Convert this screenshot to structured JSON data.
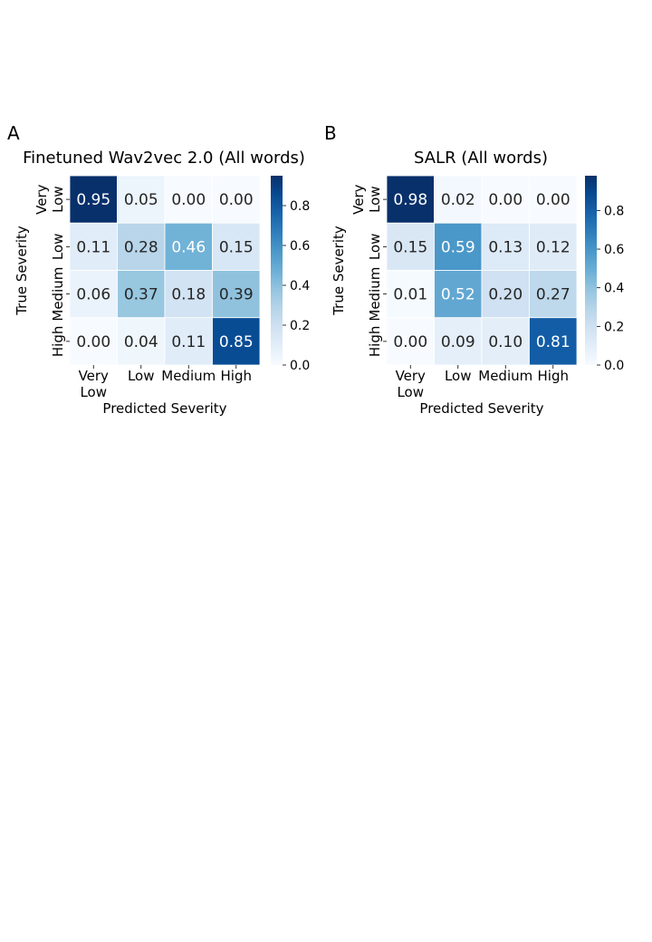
{
  "chart_data": [
    {
      "type": "heatmap",
      "panel_label": "A",
      "title": "Finetuned Wav2vec 2.0 (All words)",
      "xlabel": "Predicted Severity",
      "ylabel": "True Severity",
      "x_categories": [
        [
          "Very",
          "Low"
        ],
        [
          "Low"
        ],
        [
          "Medium"
        ],
        [
          "High"
        ]
      ],
      "y_categories": [
        [
          "Very",
          "Low"
        ],
        [
          "Low"
        ],
        [
          "Medium"
        ],
        [
          "High"
        ]
      ],
      "values": [
        [
          0.95,
          0.05,
          0.0,
          0.0
        ],
        [
          0.11,
          0.28,
          0.46,
          0.15
        ],
        [
          0.06,
          0.37,
          0.18,
          0.39
        ],
        [
          0.0,
          0.04,
          0.11,
          0.85
        ]
      ],
      "value_labels": [
        [
          "0.95",
          "0.05",
          "0.00",
          "0.00"
        ],
        [
          "0.11",
          "0.28",
          "0.46",
          "0.15"
        ],
        [
          "0.06",
          "0.37",
          "0.18",
          "0.39"
        ],
        [
          "0.00",
          "0.04",
          "0.11",
          "0.85"
        ]
      ],
      "colormap": "Blues",
      "colorbar": {
        "range": [
          0,
          0.95
        ],
        "ticks": [
          0.0,
          0.2,
          0.4,
          0.6,
          0.8
        ],
        "tick_labels": [
          "0.0",
          "0.2",
          "0.4",
          "0.6",
          "0.8"
        ]
      }
    },
    {
      "type": "heatmap",
      "panel_label": "B",
      "title": "SALR (All words)",
      "xlabel": "Predicted Severity",
      "ylabel": "True Severity",
      "x_categories": [
        [
          "Very",
          "Low"
        ],
        [
          "Low"
        ],
        [
          "Medium"
        ],
        [
          "High"
        ]
      ],
      "y_categories": [
        [
          "Very",
          "Low"
        ],
        [
          "Low"
        ],
        [
          "Medium"
        ],
        [
          "High"
        ]
      ],
      "values": [
        [
          0.98,
          0.02,
          0.0,
          0.0
        ],
        [
          0.15,
          0.59,
          0.13,
          0.12
        ],
        [
          0.01,
          0.52,
          0.2,
          0.27
        ],
        [
          0.0,
          0.09,
          0.1,
          0.81
        ]
      ],
      "value_labels": [
        [
          "0.98",
          "0.02",
          "0.00",
          "0.00"
        ],
        [
          "0.15",
          "0.59",
          "0.13",
          "0.12"
        ],
        [
          "0.01",
          "0.52",
          "0.20",
          "0.27"
        ],
        [
          "0.00",
          "0.09",
          "0.10",
          "0.81"
        ]
      ],
      "colormap": "Blues",
      "colorbar": {
        "range": [
          0,
          0.98
        ],
        "ticks": [
          0.0,
          0.2,
          0.4,
          0.6,
          0.8
        ],
        "tick_labels": [
          "0.0",
          "0.2",
          "0.4",
          "0.6",
          "0.8"
        ]
      }
    }
  ]
}
